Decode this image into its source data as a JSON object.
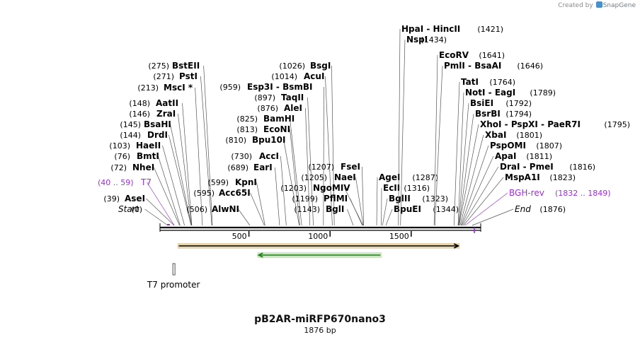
{
  "credit": {
    "prefix": "Created by",
    "brand": "SnapGene"
  },
  "title": "pB2AR-miRFP670nano3",
  "length_label": "1876 bp",
  "total_bp": 1876,
  "ruler_ticks": [
    {
      "bp": 500,
      "label": "500"
    },
    {
      "bp": 1000,
      "label": "1000"
    },
    {
      "bp": 1500,
      "label": "1500"
    }
  ],
  "colors": {
    "primer": "#9b30d9",
    "cds_outline": "#f0a64a",
    "cds_fill": "#e8d6b0",
    "reverse_outline": "#7fd27f",
    "reverse_fill": "#cfe6c4",
    "text": "#000000"
  },
  "features": [
    {
      "name": "T7 promoter",
      "start": 40,
      "end": 59
    }
  ],
  "orfs": [
    {
      "start": 68,
      "end": 1790,
      "direction": "forward"
    },
    {
      "start": 560,
      "end": 1310,
      "direction": "reverse"
    }
  ],
  "sites": [
    {
      "pos": "(0)",
      "name": "Start",
      "bp": 0,
      "kind": "italic"
    },
    {
      "pos": "(39)",
      "name": "AseI",
      "bp": 39
    },
    {
      "range": "(40 .. 59)",
      "name": "T7",
      "bp": 40,
      "kind": "primer"
    },
    {
      "pos": "(72)",
      "name": "NheI",
      "bp": 72
    },
    {
      "pos": "(76)",
      "name": "BmtI",
      "bp": 76
    },
    {
      "pos": "(103)",
      "name": "HaeII",
      "bp": 103
    },
    {
      "pos": "(144)",
      "name": "DrdI",
      "bp": 144
    },
    {
      "pos": "(145)",
      "name": "BsaHI",
      "bp": 145
    },
    {
      "pos": "(146)",
      "name": "ZraI",
      "bp": 146
    },
    {
      "pos": "(148)",
      "name": "AatII",
      "bp": 148
    },
    {
      "pos": "(213)",
      "name": "MscI",
      "mark": "*",
      "bp": 213
    },
    {
      "pos": "(271)",
      "name": "PstI",
      "bp": 271
    },
    {
      "pos": "(275)",
      "name": "BstEII",
      "bp": 275
    },
    {
      "pos": "(506)",
      "name": "AlwNI",
      "bp": 506
    },
    {
      "pos": "(595)",
      "name": "Acc65I",
      "bp": 595
    },
    {
      "pos": "(599)",
      "name": "KpnI",
      "bp": 599
    },
    {
      "pos": "(689)",
      "name": "EarI",
      "bp": 689
    },
    {
      "pos": "(730)",
      "name": "AccI",
      "bp": 730
    },
    {
      "pos": "(810)",
      "name": "Bpu10I",
      "bp": 810
    },
    {
      "pos": "(813)",
      "name": "EcoNI",
      "bp": 813
    },
    {
      "pos": "(825)",
      "name": "BamHI",
      "bp": 825
    },
    {
      "pos": "(876)",
      "name": "AleI",
      "bp": 876
    },
    {
      "pos": "(897)",
      "name": "TaqII",
      "bp": 897
    },
    {
      "pos": "(959)",
      "name": "Esp3I",
      "name2": "BsmBI",
      "bp": 959
    },
    {
      "pos": "(1014)",
      "name": "AcuI",
      "bp": 1014
    },
    {
      "pos": "(1026)",
      "name": "BsgI",
      "bp": 1026
    },
    {
      "pos": "(1143)",
      "name": "BglI",
      "bp": 1143
    },
    {
      "pos": "(1199)",
      "name": "PflMI",
      "bp": 1199
    },
    {
      "pos": "(1203)",
      "name": "NgoMIV",
      "bp": 1203
    },
    {
      "pos": "(1205)",
      "name": "NaeI",
      "bp": 1205
    },
    {
      "pos": "(1207)",
      "name": "FseI",
      "bp": 1207
    },
    {
      "pos": "(1287)",
      "name": "AgeI",
      "bp": 1287
    },
    {
      "pos": "(1316)",
      "name": "EcII",
      "bp": 1316
    },
    {
      "pos": "(1323)",
      "name": "BglII",
      "bp": 1323
    },
    {
      "pos": "(1344)",
      "name": "BpuEI",
      "bp": 1344
    },
    {
      "pos": "(1421)",
      "name": "HpaI",
      "name2": "HincII",
      "bp": 1421
    },
    {
      "pos": "(1434)",
      "name": "NspI",
      "bp": 1434
    },
    {
      "pos": "(1641)",
      "name": "EcoRV",
      "bp": 1641
    },
    {
      "pos": "(1646)",
      "name": "PmlI",
      "name2": "BsaAI",
      "bp": 1646
    },
    {
      "pos": "(1764)",
      "name": "TatI",
      "bp": 1764
    },
    {
      "pos": "(1789)",
      "name": "NotI",
      "name2": "EagI",
      "bp": 1789
    },
    {
      "pos": "(1792)",
      "name": "BsiEI",
      "bp": 1792
    },
    {
      "pos": "(1794)",
      "name": "BsrBI",
      "bp": 1794
    },
    {
      "pos": "(1795)",
      "name": "XhoI",
      "name2": "PspXI",
      "name3": "PaeR7I",
      "bp": 1795
    },
    {
      "pos": "(1801)",
      "name": "XbaI",
      "bp": 1801
    },
    {
      "pos": "(1807)",
      "name": "PspOMI",
      "bp": 1807
    },
    {
      "pos": "(1811)",
      "name": "ApaI",
      "bp": 1811
    },
    {
      "pos": "(1816)",
      "name": "DraI",
      "name2": "PmeI",
      "bp": 1816
    },
    {
      "pos": "(1823)",
      "name": "MspA1I",
      "bp": 1823
    },
    {
      "range": "(1832 .. 1849)",
      "name": "BGH-rev",
      "bp": 1832,
      "kind": "primer"
    },
    {
      "pos": "(1876)",
      "name": "End",
      "bp": 1876,
      "kind": "italic"
    }
  ]
}
